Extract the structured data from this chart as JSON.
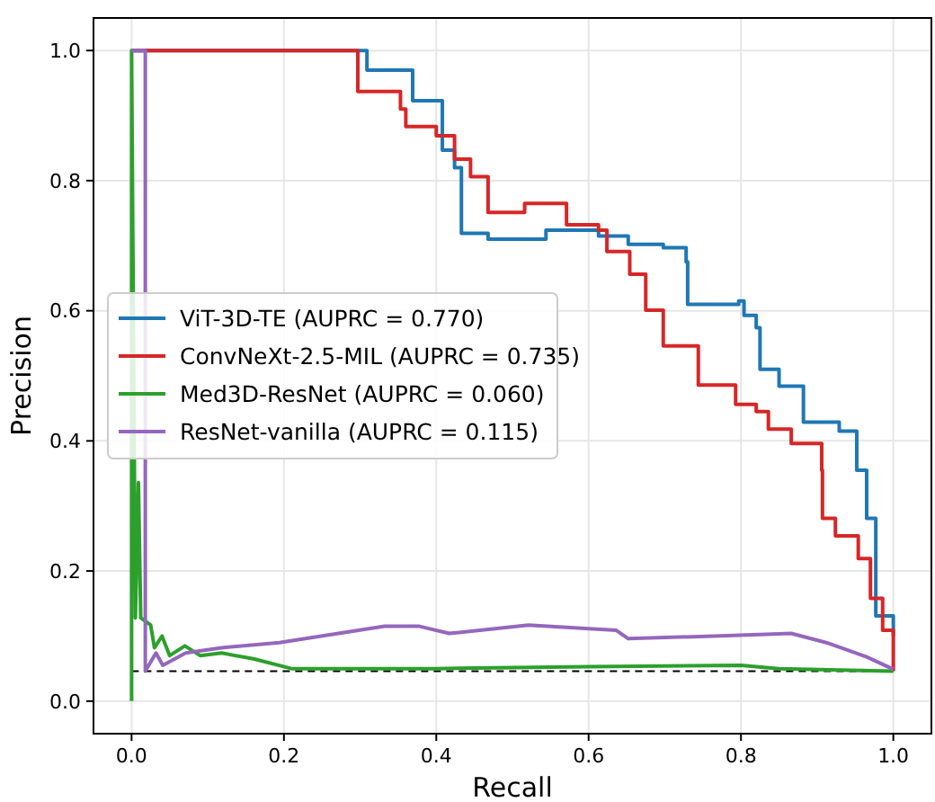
{
  "chart_data": {
    "type": "line",
    "xlabel": "Recall",
    "ylabel": "Precision",
    "xlim": [
      -0.05,
      1.05
    ],
    "ylim": [
      -0.05,
      1.05
    ],
    "xticks": [
      {
        "value": 0,
        "label": "0.0"
      },
      {
        "value": 0.2,
        "label": "0.2"
      },
      {
        "value": 0.4,
        "label": "0.4"
      },
      {
        "value": 0.6,
        "label": "0.6"
      },
      {
        "value": 0.8,
        "label": "0.8"
      },
      {
        "value": 1,
        "label": "1.0"
      }
    ],
    "yticks": [
      {
        "value": 0,
        "label": "0.0"
      },
      {
        "value": 0.2,
        "label": "0.2"
      },
      {
        "value": 0.4,
        "label": "0.4"
      },
      {
        "value": 0.6,
        "label": "0.6"
      },
      {
        "value": 0.8,
        "label": "0.8"
      },
      {
        "value": 1,
        "label": "1.0"
      }
    ],
    "grid": true,
    "legend": "center left",
    "line_style": "solid",
    "ref_lines": [
      {
        "axis": "y",
        "value": 0.046,
        "color": "#000000",
        "line_style": "dashed"
      }
    ],
    "series": [
      {
        "name": "ViT-3D-TE (AUPRC = 0.770)",
        "type": "step",
        "color": "#1f77b4",
        "x": [
          0,
          0.309,
          0.369,
          0.408,
          0.424,
          0.433,
          0.468,
          0.544,
          0.613,
          0.652,
          0.698,
          0.728,
          0.73,
          0.797,
          0.804,
          0.82,
          0.825,
          0.85,
          0.882,
          0.929,
          0.952,
          0.965,
          0.977,
          1.0
        ],
        "values": [
          1,
          0.97,
          0.923,
          0.847,
          0.82,
          0.719,
          0.71,
          0.724,
          0.715,
          0.702,
          0.697,
          0.675,
          0.61,
          0.615,
          0.593,
          0.574,
          0.51,
          0.484,
          0.429,
          0.415,
          0.355,
          0.281,
          0.131,
          0.1
        ]
      },
      {
        "name": "ConvNeXt-2.5-MIL (AUPRC = 0.735)",
        "type": "step",
        "color": "#d62728",
        "x": [
          0,
          0.297,
          0.353,
          0.36,
          0.4,
          0.424,
          0.445,
          0.468,
          0.516,
          0.571,
          0.613,
          0.624,
          0.654,
          0.675,
          0.698,
          0.744,
          0.793,
          0.82,
          0.836,
          0.866,
          0.906,
          0.907,
          0.924,
          0.954,
          0.97,
          0.986,
          1.0
        ],
        "values": [
          1,
          0.937,
          0.91,
          0.883,
          0.869,
          0.833,
          0.806,
          0.751,
          0.765,
          0.732,
          0.724,
          0.691,
          0.656,
          0.601,
          0.546,
          0.486,
          0.456,
          0.445,
          0.418,
          0.396,
          0.355,
          0.281,
          0.254,
          0.219,
          0.158,
          0.109,
          0.046
        ]
      },
      {
        "name": "Med3D-ResNet (AUPRC = 0.060)",
        "color": "#2ca02c",
        "x": [
          0,
          0,
          0.005,
          0.009,
          0.012,
          0.025,
          0.03,
          0.04,
          0.05,
          0.07,
          0.09,
          0.118,
          0.16,
          0.21,
          0.4,
          0.6,
          0.8,
          0.85,
          1.0
        ],
        "values": [
          0,
          1,
          0.128,
          0.336,
          0.128,
          0.117,
          0.082,
          0.1,
          0.07,
          0.085,
          0.07,
          0.074,
          0.065,
          0.05,
          0.05,
          0.053,
          0.055,
          0.05,
          0.046
        ]
      },
      {
        "name": "ResNet-vanilla (AUPRC = 0.115)",
        "color": "#9467bd",
        "x": [
          0,
          0.018,
          0.018,
          0.032,
          0.041,
          0.071,
          0.118,
          0.194,
          0.332,
          0.378,
          0.417,
          0.521,
          0.636,
          0.652,
          0.79,
          0.866,
          0.912,
          0.965,
          1.0
        ],
        "values": [
          1,
          1,
          0.046,
          0.074,
          0.055,
          0.074,
          0.082,
          0.09,
          0.115,
          0.115,
          0.104,
          0.117,
          0.109,
          0.096,
          0.101,
          0.104,
          0.09,
          0.068,
          0.049
        ]
      }
    ]
  }
}
